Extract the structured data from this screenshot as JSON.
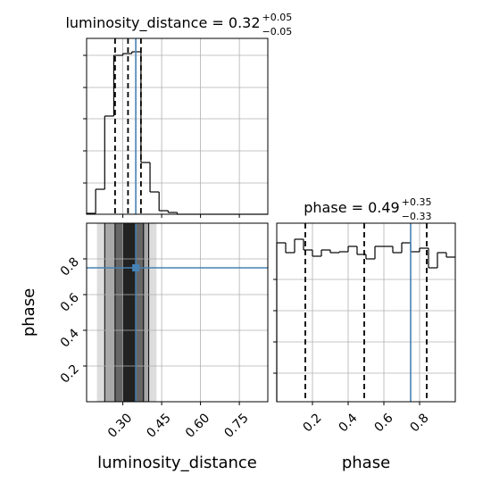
{
  "chart_data": [
    {
      "type": "histogram",
      "title": {
        "main": "luminosity_distance = 0.32",
        "plus": "+0.05",
        "minus": "−0.05"
      },
      "bins": [
        0.16,
        0.195,
        0.23,
        0.265,
        0.3,
        0.335,
        0.37,
        0.405,
        0.44,
        0.475,
        0.51,
        0.545,
        0.58,
        0.615,
        0.65,
        0.685,
        0.72,
        0.755,
        0.79,
        0.825,
        0.86
      ],
      "counts": [
        1,
        28,
        110,
        178,
        180,
        182,
        58,
        25,
        4,
        2,
        0,
        0,
        0,
        0,
        0,
        0,
        0,
        0,
        0,
        0
      ],
      "xlim": [
        0.16,
        0.86
      ],
      "ylim": [
        0,
        197
      ],
      "xticks": [
        0.3,
        0.45,
        0.6,
        0.75
      ],
      "yticks": [
        35,
        71,
        107,
        142,
        178
      ],
      "quantiles": [
        0.27,
        0.32,
        0.37
      ],
      "truth": 0.35,
      "color": "#000000",
      "truth_color": "#4682b4",
      "grid": true
    },
    {
      "type": "contour",
      "xlabel": "luminosity_distance",
      "ylabel": "phase",
      "xlim": [
        0.16,
        0.86
      ],
      "ylim": [
        0,
        1
      ],
      "xticks": [
        {
          "value": 0.3,
          "label": "0.30"
        },
        {
          "value": 0.45,
          "label": "0.45"
        },
        {
          "value": 0.6,
          "label": "0.60"
        },
        {
          "value": 0.75,
          "label": "0.75"
        }
      ],
      "yticks": [
        0.2,
        0.4,
        0.6,
        0.8
      ],
      "bands": [
        {
          "x": [
            0.2,
            0.43
          ],
          "color": "#dddddd"
        },
        {
          "x": [
            0.23,
            0.4
          ],
          "color": "#a8a8a8"
        },
        {
          "x": [
            0.27,
            0.38
          ],
          "color": "#666666"
        },
        {
          "x": [
            0.3,
            0.35
          ],
          "color": "#222222"
        }
      ],
      "truth": {
        "x": 0.35,
        "y": 0.75
      },
      "truth_color": "#4682b4",
      "grid": true
    },
    {
      "type": "histogram",
      "title": {
        "main": "phase = 0.49",
        "plus": "+0.35",
        "minus": "−0.33"
      },
      "xlabel": "phase",
      "bins": [
        0,
        0.05,
        0.1,
        0.15,
        0.2,
        0.25,
        0.3,
        0.35,
        0.4,
        0.45,
        0.5,
        0.55,
        0.6,
        0.65,
        0.7,
        0.75,
        0.8,
        0.85,
        0.9,
        0.95,
        1.0
      ],
      "counts": [
        178,
        167,
        182,
        170,
        163,
        170,
        167,
        168,
        174,
        165,
        160,
        174,
        174,
        167,
        178,
        168,
        172,
        150,
        167,
        162
      ],
      "xlim": [
        0,
        1
      ],
      "ylim": [
        0,
        200
      ],
      "xticks": [
        0.2,
        0.4,
        0.6,
        0.8
      ],
      "yticks": [
        32,
        67,
        102,
        137
      ],
      "quantiles": [
        0.16,
        0.49,
        0.84
      ],
      "truth": 0.75,
      "color": "#000000",
      "truth_color": "#4682b4",
      "grid": true
    }
  ]
}
